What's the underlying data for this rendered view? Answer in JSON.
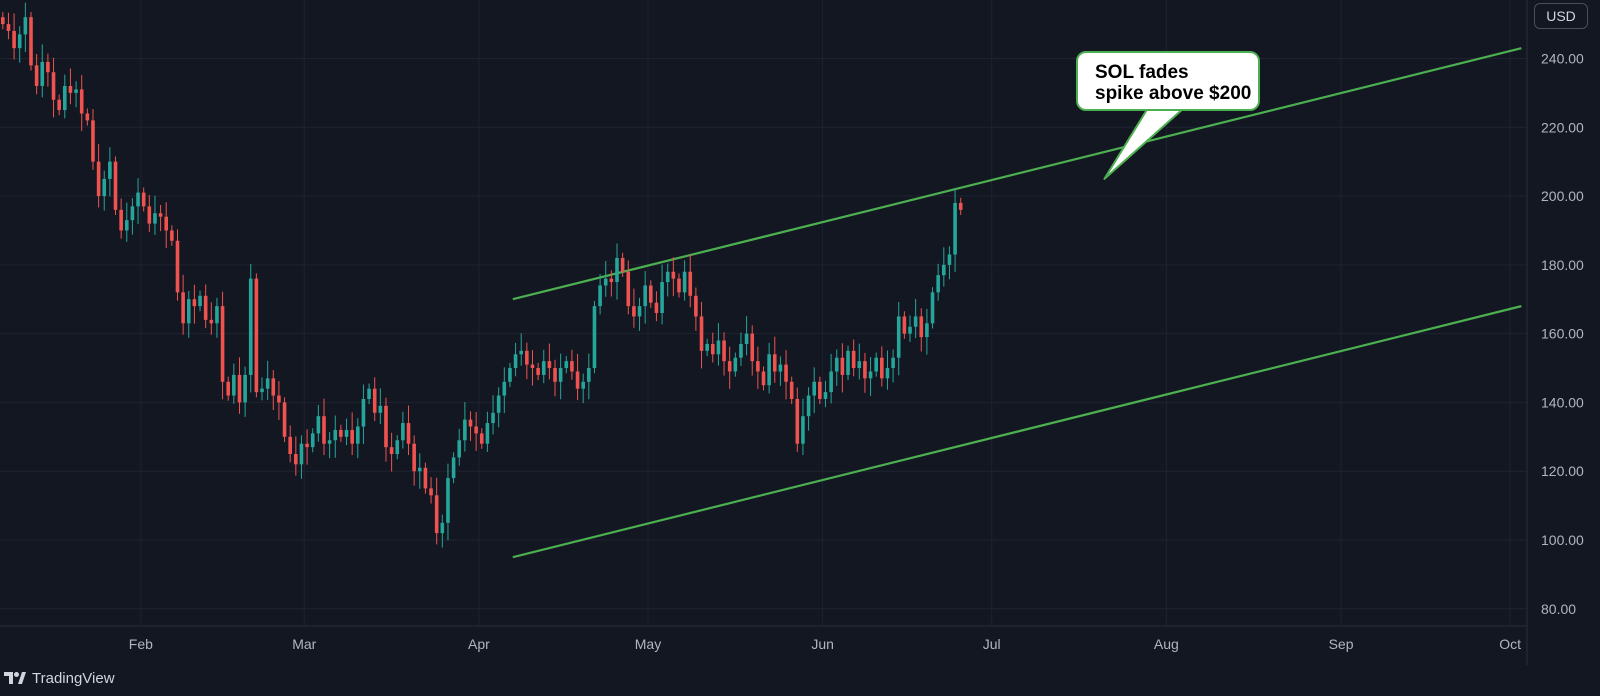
{
  "currency": "USD",
  "annotation": {
    "line1": "SOL fades",
    "line2": "spike above $200"
  },
  "footer": {
    "brand": "TradingView",
    "logo_icon": "tradingview-logo-icon"
  },
  "colors": {
    "background": "#131722",
    "grid": "#1f2330",
    "up": "#26a69a",
    "down": "#ef5350",
    "trendline": "#4caf50",
    "axis_text": "#b2b5be"
  },
  "chart_data": {
    "type": "candlestick",
    "title": "",
    "xlabel": "",
    "ylabel": "",
    "ylim": [
      75,
      257
    ],
    "xlim": [
      "2024-01-07",
      "2024-10-04"
    ],
    "y_ticks": [
      {
        "value": 80,
        "label": "80.00"
      },
      {
        "value": 100,
        "label": "100.00"
      },
      {
        "value": 120,
        "label": "120.00"
      },
      {
        "value": 140,
        "label": "140.00"
      },
      {
        "value": 160,
        "label": "160.00"
      },
      {
        "value": 180,
        "label": "180.00"
      },
      {
        "value": 200,
        "label": "200.00"
      },
      {
        "value": 220,
        "label": "220.00"
      },
      {
        "value": 240,
        "label": "240.00"
      }
    ],
    "x_ticks": [
      {
        "date": "2024-02-01",
        "label": "Feb"
      },
      {
        "date": "2024-03-01",
        "label": "Mar"
      },
      {
        "date": "2024-04-01",
        "label": "Apr"
      },
      {
        "date": "2024-05-01",
        "label": "May"
      },
      {
        "date": "2024-06-01",
        "label": "Jun"
      },
      {
        "date": "2024-07-01",
        "label": "Jul"
      },
      {
        "date": "2024-08-01",
        "label": "Aug"
      },
      {
        "date": "2024-09-01",
        "label": "Sep"
      },
      {
        "date": "2024-10-01",
        "label": "Oct"
      }
    ],
    "candles_start": "2024-01-07",
    "candles_close": [
      250,
      248,
      243,
      247,
      252,
      238,
      232,
      239,
      236,
      228,
      225,
      232,
      230,
      231,
      224,
      222,
      210,
      200,
      205,
      210,
      196,
      190,
      193,
      197,
      201,
      197,
      192,
      195,
      194,
      190,
      187,
      172,
      163,
      170,
      168,
      171,
      164,
      163,
      168,
      146,
      142,
      148,
      140,
      148,
      176,
      143,
      144,
      147,
      142,
      140,
      130,
      125,
      122,
      128,
      127,
      131,
      136,
      128,
      129,
      132,
      130,
      132,
      128,
      133,
      141,
      144,
      137,
      139,
      127,
      125,
      129,
      134,
      128,
      120,
      121,
      115,
      113,
      102,
      105,
      118,
      124,
      129,
      135,
      133,
      131,
      128,
      134,
      137,
      142,
      146,
      150,
      154,
      155,
      151,
      150,
      148,
      152,
      150,
      146,
      150,
      152,
      149,
      144,
      146,
      150,
      168,
      174,
      176,
      175,
      182,
      178,
      168,
      165,
      168,
      174,
      169,
      166,
      175,
      178,
      176,
      172,
      178,
      171,
      165,
      155,
      157,
      154,
      158,
      152,
      149,
      153,
      157,
      160,
      152,
      149,
      145,
      154,
      149,
      151,
      146,
      141,
      128,
      136,
      142,
      146,
      141,
      143,
      149,
      153,
      148,
      155,
      150,
      152,
      147,
      149,
      153,
      147,
      150,
      153,
      165,
      160,
      162,
      165,
      159,
      163,
      172,
      177,
      180,
      183,
      198,
      196
    ],
    "trendlines": [
      {
        "name": "upper",
        "x": [
          "2024-04-07",
          "2024-10-03"
        ],
        "y": [
          170,
          243
        ]
      },
      {
        "name": "lower",
        "x": [
          "2024-04-07",
          "2024-10-03"
        ],
        "y": [
          95,
          168
        ]
      }
    ],
    "annotations": [
      {
        "text": "SOL fades spike above $200",
        "x": "2024-07-21",
        "y": 205
      }
    ],
    "grid": true
  }
}
